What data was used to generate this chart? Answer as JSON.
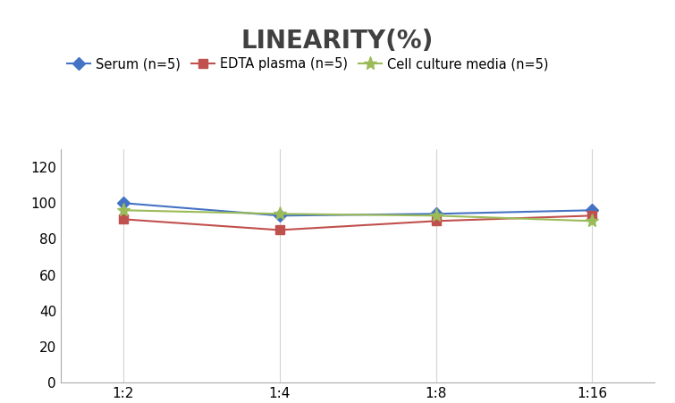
{
  "title": "LINEARITY(%)",
  "title_fontsize": 20,
  "title_fontweight": "bold",
  "x_labels": [
    "1:2",
    "1:4",
    "1:8",
    "1:16"
  ],
  "x_positions": [
    0,
    1,
    2,
    3
  ],
  "series": [
    {
      "label": "Serum (n=5)",
      "color": "#4472C4",
      "marker": "D",
      "values": [
        100,
        93,
        94,
        96
      ]
    },
    {
      "label": "EDTA plasma (n=5)",
      "color": "#C0504D",
      "marker": "s",
      "values": [
        91,
        85,
        90,
        93
      ]
    },
    {
      "label": "Cell culture media (n=5)",
      "color": "#9BBB59",
      "marker": "*",
      "values": [
        96,
        94,
        93,
        90
      ]
    }
  ],
  "ylim": [
    0,
    130
  ],
  "yticks": [
    0,
    20,
    40,
    60,
    80,
    100,
    120
  ],
  "grid_color": "#D3D3D3",
  "background_color": "#FFFFFF",
  "legend_fontsize": 10.5,
  "axis_fontsize": 11,
  "title_color": "#404040"
}
